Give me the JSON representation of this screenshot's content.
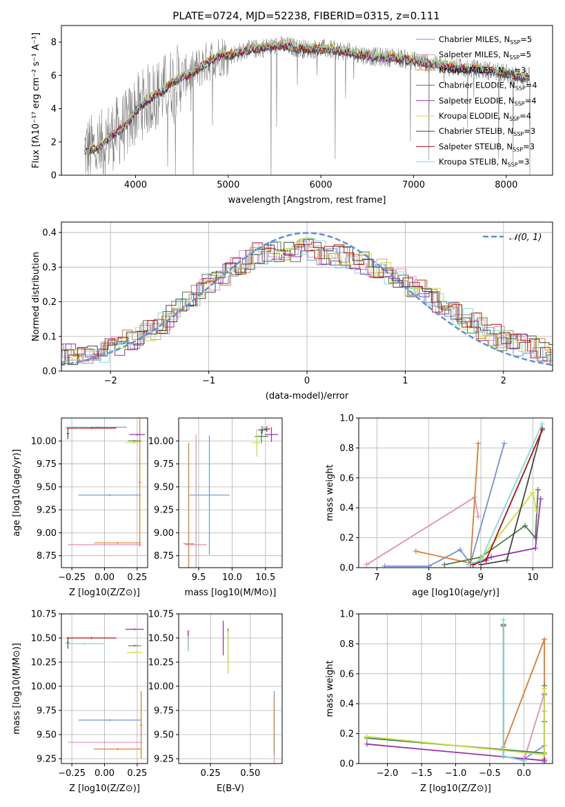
{
  "figure": {
    "title": "PLATE=0724, MJD=52238, FIBERID=0315, z=0.111"
  },
  "colors": {
    "chabrier_miles": "#6d93d8",
    "salpeter_miles": "#e58fb8",
    "kroupa_miles": "#e07b2e",
    "chabrier_elodie": "#4a7a4a",
    "salpeter_elodie": "#9b2fae",
    "kroupa_elodie": "#c6e03a",
    "chabrier_stelib": "#444444",
    "salpeter_stelib": "#b01010",
    "kroupa_stelib": "#7fdcdc",
    "data": "#808080",
    "normal": "#5b8fd6",
    "grid": "#b0b0b0"
  },
  "chart_data": [
    {
      "id": "spectrum",
      "type": "line",
      "xlabel": "wavelength [Angstrom, rest frame]",
      "ylabel": "Flux [fλ10⁻¹⁷ erg cm⁻² s⁻¹ A⁻¹]",
      "xlim": [
        3200,
        8500
      ],
      "ylim": [
        0,
        9
      ],
      "xticks": [
        4000,
        5000,
        6000,
        7000,
        8000
      ],
      "yticks": [
        0,
        2,
        4,
        6,
        8
      ],
      "grid": false,
      "legend_position": "right",
      "legend": [
        "Chabrier MILES, N_SSP=5",
        "Salpeter MILES, N_SSP=5",
        "Kroupa MILES, N_SSP=3",
        "Chabrier ELODIE, N_SSP=4",
        "Salpeter ELODIE, N_SSP=4",
        "Kroupa ELODIE, N_SSP=4",
        "Chabrier STELIB, N_SSP=3",
        "Salpeter STELIB, N_SSP=3",
        "Kroupa STELIB, N_SSP=3"
      ],
      "model_curve": {
        "x": [
          3450,
          3600,
          3700,
          3800,
          3900,
          4000,
          4100,
          4200,
          4300,
          4400,
          4500,
          4600,
          4700,
          4800,
          4900,
          5000,
          5200,
          5400,
          5600,
          5800,
          6000,
          6200,
          6400,
          6600,
          6800,
          7000,
          7200,
          7400,
          7600,
          7800,
          8000,
          8200,
          8260
        ],
        "y": [
          1.5,
          1.6,
          2.2,
          2.6,
          3.0,
          3.9,
          4.4,
          4.8,
          5.1,
          5.6,
          5.9,
          6.1,
          6.5,
          6.9,
          7.2,
          7.2,
          7.5,
          7.7,
          7.8,
          7.6,
          7.6,
          7.5,
          7.3,
          7.1,
          7.1,
          6.9,
          6.7,
          6.5,
          6.4,
          6.3,
          6.1,
          5.9,
          5.9
        ]
      }
    },
    {
      "id": "residuals",
      "type": "line",
      "xlabel": "(data-model)/error",
      "ylabel": "Normed distribution",
      "xlim": [
        -2.5,
        2.5
      ],
      "ylim": [
        0,
        0.43
      ],
      "xticks": [
        -2,
        -1,
        0,
        1,
        2
      ],
      "yticks": [
        0.0,
        0.1,
        0.2,
        0.3,
        0.4
      ],
      "grid": true,
      "legend": [
        "𝒩(0, 1)"
      ],
      "legend_position": "top-right",
      "hist_envelope": {
        "x": [
          -2.5,
          -2.0,
          -1.5,
          -1.0,
          -0.5,
          0.0,
          0.5,
          1.0,
          1.5,
          2.0,
          2.5
        ],
        "y": [
          0.045,
          0.06,
          0.13,
          0.25,
          0.34,
          0.35,
          0.32,
          0.26,
          0.17,
          0.09,
          0.05
        ]
      }
    },
    {
      "id": "age_vs_Z",
      "type": "scatter",
      "xlabel": "Z [log10(Z/Z⊙)]",
      "ylabel": "age  [log10(age/yr)]",
      "xlim": [
        -0.33,
        0.33
      ],
      "ylim": [
        8.62,
        10.25
      ],
      "xticks": [
        -0.25,
        0.0,
        0.25
      ],
      "yticks": [
        8.75,
        9.0,
        9.25,
        9.5,
        9.75,
        10.0
      ],
      "grid": true,
      "points": [
        {
          "model": "chabrier_miles",
          "x": -0.05,
          "y": 10.15,
          "xerr": 0.22,
          "yerr": 0.01
        },
        {
          "model": "chabrier_miles",
          "x": 0.04,
          "y": 9.41,
          "xerr": 0.24,
          "yerr": 0.01
        },
        {
          "model": "salpeter_miles",
          "x": 0.0,
          "y": 8.87,
          "xerr": 0.28,
          "yerr": 0.01
        },
        {
          "model": "kroupa_miles",
          "x": 0.1,
          "y": 8.89,
          "xerr": 0.18,
          "yerr": 0.01
        },
        {
          "model": "kroupa_miles",
          "x": 0.27,
          "y": 9.55,
          "xerr": 0.01,
          "yerr": 0.7
        },
        {
          "model": "chabrier_elodie",
          "x": 0.23,
          "y": 10.0,
          "xerr": 0.05,
          "yerr": 0.01
        },
        {
          "model": "salpeter_elodie",
          "x": 0.25,
          "y": 10.07,
          "xerr": 0.06,
          "yerr": 0.01
        },
        {
          "model": "kroupa_elodie",
          "x": 0.22,
          "y": 9.98,
          "xerr": 0.06,
          "yerr": 0.01
        },
        {
          "model": "chabrier_stelib",
          "x": -0.28,
          "y": 10.08,
          "xerr": 0.01,
          "yerr": 0.06
        },
        {
          "model": "salpeter_stelib",
          "x": -0.1,
          "y": 10.14,
          "xerr": 0.19,
          "yerr": 0.01
        },
        {
          "model": "kroupa_stelib",
          "x": -0.2,
          "y": 10.15,
          "xerr": 0.1,
          "yerr": 0.01
        }
      ]
    },
    {
      "id": "age_vs_mass",
      "type": "scatter",
      "xlabel": "mass [log10(M/M⊙)]",
      "ylabel": "",
      "xlim": [
        9.2,
        10.75
      ],
      "ylim": [
        8.62,
        10.25
      ],
      "xticks": [
        9.5,
        10.0,
        10.5
      ],
      "yticks": [
        8.75,
        9.0,
        9.25,
        9.5,
        9.75,
        10.0
      ],
      "grid": true,
      "points": [
        {
          "model": "chabrier_miles",
          "x": 9.66,
          "y": 9.41,
          "xerr": 0.3,
          "yerr": 0.65
        },
        {
          "model": "salpeter_miles",
          "x": 9.46,
          "y": 8.87,
          "xerr": 0.16,
          "yerr": 1.2
        },
        {
          "model": "kroupa_miles",
          "x": 9.35,
          "y": 8.88,
          "xerr": 0.08,
          "yerr": 1.1
        },
        {
          "model": "chabrier_elodie",
          "x": 10.44,
          "y": 10.05,
          "xerr": 0.1,
          "yerr": 0.07
        },
        {
          "model": "salpeter_elodie",
          "x": 10.59,
          "y": 10.07,
          "xerr": 0.1,
          "yerr": 0.08
        },
        {
          "model": "kroupa_elodie",
          "x": 10.37,
          "y": 9.98,
          "xerr": 0.08,
          "yerr": 0.15
        },
        {
          "model": "chabrier_stelib",
          "x": 10.45,
          "y": 10.12,
          "xerr": 0.06,
          "yerr": 0.04
        },
        {
          "model": "salpeter_stelib",
          "x": 10.52,
          "y": 10.13,
          "xerr": 0.05,
          "yerr": 0.03
        },
        {
          "model": "kroupa_stelib",
          "x": 10.48,
          "y": 10.14,
          "xerr": 0.05,
          "yerr": 0.02
        }
      ]
    },
    {
      "id": "weight_vs_age",
      "type": "line",
      "xlabel": "age  [log10(age/yr)]",
      "ylabel": "mass weight",
      "xlim": [
        6.65,
        10.38
      ],
      "ylim": [
        0.0,
        1.0
      ],
      "xticks": [
        7,
        8,
        9,
        10
      ],
      "yticks": [
        0.0,
        0.2,
        0.4,
        0.6,
        0.8,
        1.0
      ],
      "grid": true,
      "series": [
        {
          "model": "chabrier_miles",
          "x": [
            7.15,
            8.0,
            8.6,
            8.8,
            9.45
          ],
          "y": [
            0.01,
            0.01,
            0.12,
            0.03,
            0.83
          ]
        },
        {
          "model": "salpeter_miles",
          "x": [
            6.8,
            8.88,
            8.95
          ],
          "y": [
            0.02,
            0.47,
            0.34
          ]
        },
        {
          "model": "kroupa_miles",
          "x": [
            7.75,
            8.8,
            8.95
          ],
          "y": [
            0.11,
            0.03,
            0.83
          ]
        },
        {
          "model": "chabrier_elodie",
          "x": [
            8.3,
            9.0,
            9.85,
            10.05,
            10.1
          ],
          "y": [
            0.02,
            0.07,
            0.28,
            0.2,
            0.52
          ]
        },
        {
          "model": "salpeter_elodie",
          "x": [
            8.8,
            9.2,
            10.05,
            10.15
          ],
          "y": [
            0.02,
            0.07,
            0.13,
            0.46
          ]
        },
        {
          "model": "kroupa_elodie",
          "x": [
            8.85,
            9.0,
            10.0,
            10.07
          ],
          "y": [
            0.02,
            0.06,
            0.5,
            0.38
          ]
        },
        {
          "model": "chabrier_stelib",
          "x": [
            9.0,
            9.5,
            10.18
          ],
          "y": [
            0.02,
            0.05,
            0.93
          ]
        },
        {
          "model": "salpeter_stelib",
          "x": [
            8.85,
            9.1,
            10.18
          ],
          "y": [
            0.02,
            0.05,
            0.92
          ]
        },
        {
          "model": "kroupa_stelib",
          "x": [
            8.75,
            9.0,
            10.18
          ],
          "y": [
            0.02,
            0.05,
            0.96
          ]
        }
      ]
    },
    {
      "id": "mass_vs_Z",
      "type": "scatter",
      "xlabel": "Z [log10(Z/Z⊙)]",
      "ylabel": "mass [log10(M/M⊙)]",
      "xlim": [
        -0.33,
        0.33
      ],
      "ylim": [
        9.2,
        10.75
      ],
      "xticks": [
        -0.25,
        0.0,
        0.25
      ],
      "yticks": [
        9.25,
        9.5,
        9.75,
        10.0,
        10.25,
        10.5,
        10.75
      ],
      "grid": true,
      "points": [
        {
          "model": "chabrier_miles",
          "x": 0.04,
          "y": 9.65,
          "xerr": 0.24,
          "yerr": 0.01
        },
        {
          "model": "salpeter_miles",
          "x": 0.0,
          "y": 9.42,
          "xerr": 0.28,
          "yerr": 0.01
        },
        {
          "model": "kroupa_miles",
          "x": 0.1,
          "y": 9.35,
          "xerr": 0.18,
          "yerr": 0.01
        },
        {
          "model": "kroupa_miles",
          "x": 0.28,
          "y": 9.6,
          "xerr": 0.01,
          "yerr": 0.35
        },
        {
          "model": "chabrier_elodie",
          "x": 0.23,
          "y": 10.42,
          "xerr": 0.05,
          "yerr": 0.01
        },
        {
          "model": "salpeter_elodie",
          "x": 0.23,
          "y": 10.59,
          "xerr": 0.07,
          "yerr": 0.01
        },
        {
          "model": "kroupa_elodie",
          "x": 0.23,
          "y": 10.35,
          "xerr": 0.06,
          "yerr": 0.01
        },
        {
          "model": "chabrier_stelib",
          "x": -0.28,
          "y": 10.45,
          "xerr": 0.01,
          "yerr": 0.06
        },
        {
          "model": "salpeter_stelib",
          "x": -0.1,
          "y": 10.5,
          "xerr": 0.19,
          "yerr": 0.01
        },
        {
          "model": "kroupa_stelib",
          "x": -0.15,
          "y": 10.44,
          "xerr": 0.15,
          "yerr": 0.01
        }
      ]
    },
    {
      "id": "mass_vs_ebv",
      "type": "scatter",
      "xlabel": "E(B-V)",
      "ylabel": "",
      "xlim": [
        0.05,
        0.7
      ],
      "ylim": [
        9.2,
        10.75
      ],
      "xticks": [
        0.25,
        0.5
      ],
      "yticks": [
        9.25,
        9.5,
        9.75,
        10.0,
        10.25,
        10.5,
        10.75
      ],
      "grid": true,
      "points": [
        {
          "model": "chabrier_miles",
          "x": 0.65,
          "y": 9.65,
          "xerr": 0.0,
          "yerr": 0.3
        },
        {
          "model": "salpeter_miles",
          "x": 0.65,
          "y": 9.5,
          "xerr": 0.0,
          "yerr": 0.3
        },
        {
          "model": "kroupa_miles",
          "x": 0.65,
          "y": 9.6,
          "xerr": 0.0,
          "yerr": 0.3
        },
        {
          "model": "chabrier_elodie",
          "x": 0.36,
          "y": 10.42,
          "xerr": 0.0,
          "yerr": 0.18
        },
        {
          "model": "salpeter_elodie",
          "x": 0.33,
          "y": 10.5,
          "xerr": 0.0,
          "yerr": 0.18
        },
        {
          "model": "kroupa_elodie",
          "x": 0.36,
          "y": 10.35,
          "xerr": 0.0,
          "yerr": 0.22
        },
        {
          "model": "chabrier_stelib",
          "x": 0.11,
          "y": 10.45,
          "xerr": 0.0,
          "yerr": 0.08
        },
        {
          "model": "salpeter_stelib",
          "x": 0.11,
          "y": 10.5,
          "xerr": 0.0,
          "yerr": 0.08
        },
        {
          "model": "kroupa_stelib",
          "x": 0.11,
          "y": 10.44,
          "xerr": 0.0,
          "yerr": 0.08
        }
      ]
    },
    {
      "id": "weight_vs_Z",
      "type": "line",
      "xlabel": "Z [log10(Z/Z⊙)]",
      "ylabel": "mass weight",
      "xlim": [
        -2.42,
        0.42
      ],
      "ylim": [
        0.0,
        1.0
      ],
      "xticks": [
        -2.0,
        -1.5,
        -1.0,
        -0.5,
        0.0
      ],
      "yticks": [
        0.0,
        0.2,
        0.4,
        0.6,
        0.8,
        1.0
      ],
      "grid": true,
      "series": [
        {
          "model": "chabrier_miles",
          "x": [
            0.0,
            0.3,
            0.3
          ],
          "y": [
            0.03,
            0.12,
            0.01
          ]
        },
        {
          "model": "salpeter_miles",
          "x": [
            0.0,
            0.3,
            0.3
          ],
          "y": [
            0.02,
            0.47,
            0.35
          ]
        },
        {
          "model": "kroupa_miles",
          "x": [
            -0.3,
            0.3,
            0.3
          ],
          "y": [
            0.11,
            0.83,
            0.03
          ]
        },
        {
          "model": "chabrier_elodie",
          "x": [
            -2.3,
            0.3,
            0.3,
            0.3
          ],
          "y": [
            0.17,
            0.07,
            0.28,
            0.52
          ]
        },
        {
          "model": "salpeter_elodie",
          "x": [
            -2.3,
            0.3,
            0.3
          ],
          "y": [
            0.13,
            0.02,
            0.46
          ]
        },
        {
          "model": "kroupa_elodie",
          "x": [
            -2.3,
            0.3,
            0.3
          ],
          "y": [
            0.18,
            0.06,
            0.5
          ]
        },
        {
          "model": "chabrier_stelib",
          "x": [
            -0.3,
            -0.3,
            0.0
          ],
          "y": [
            0.93,
            0.05,
            0.02
          ]
        },
        {
          "model": "salpeter_stelib",
          "x": [
            -0.3,
            -0.3,
            0.0
          ],
          "y": [
            0.92,
            0.05,
            0.02
          ]
        },
        {
          "model": "kroupa_stelib",
          "x": [
            -0.3,
            -0.3,
            0.0
          ],
          "y": [
            0.96,
            0.05,
            0.02
          ]
        }
      ]
    }
  ]
}
